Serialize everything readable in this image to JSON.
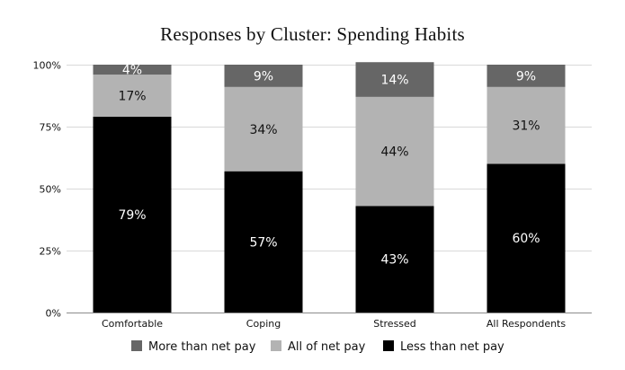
{
  "chart_data": {
    "type": "bar",
    "stacked": true,
    "title": "Responses by Cluster: Spending Habits",
    "xlabel": "",
    "ylabel": "",
    "ylim": [
      0,
      100
    ],
    "yticks": [
      0,
      25,
      50,
      75,
      100
    ],
    "ytick_labels": [
      "0%",
      "25%",
      "50%",
      "75%",
      "100%"
    ],
    "categories": [
      "Comfortable",
      "Coping",
      "Stressed",
      "All Respondents"
    ],
    "series": [
      {
        "name": "Less than net pay",
        "values": [
          79,
          57,
          43,
          60
        ],
        "labels": [
          "79%",
          "57%",
          "43%",
          "60%"
        ],
        "color": "#000000",
        "label_color": "#ffffff"
      },
      {
        "name": "All of net pay",
        "values": [
          17,
          34,
          44,
          31
        ],
        "labels": [
          "17%",
          "34%",
          "44%",
          "31%"
        ],
        "color": "#b3b3b3",
        "label_color": "#111111"
      },
      {
        "name": "More than net pay",
        "values": [
          4,
          9,
          14,
          9
        ],
        "labels": [
          "4%",
          "9%",
          "14%",
          "9%"
        ],
        "color": "#666666",
        "label_color": "#ffffff"
      }
    ],
    "legend": {
      "position": "bottom",
      "order": [
        "More than net pay",
        "All of net pay",
        "Less than net pay"
      ]
    },
    "grid": true,
    "gridline_color": "#d9d9d9"
  }
}
